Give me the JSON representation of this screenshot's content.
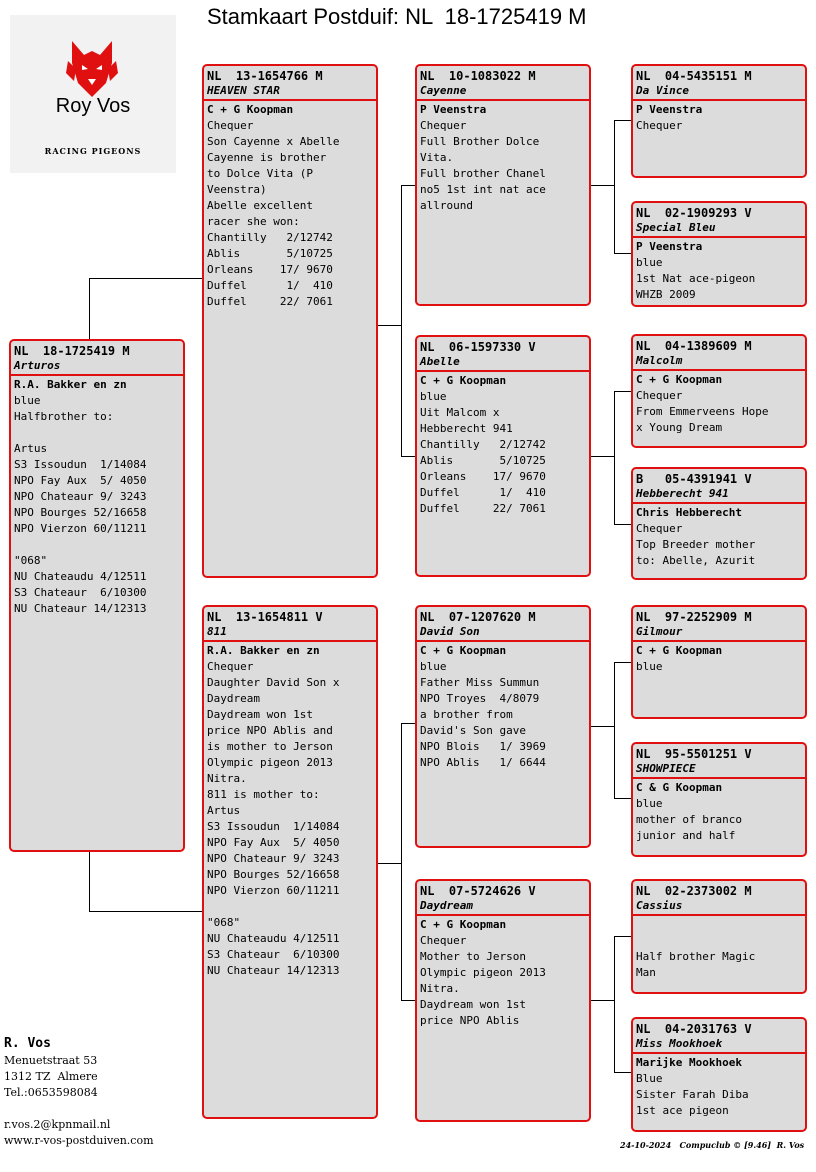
{
  "title": "Stamkaart Postduif: NL  18-1725419 M",
  "logo": {
    "name": "Roy Vos",
    "subtitle": "RACING PIGEONS",
    "icon": "wolf-head-icon"
  },
  "cards": {
    "subject": {
      "ring": "NL  18-1725419 M",
      "name": "Arturos",
      "owner": "R.A. Bakker en zn",
      "lines": [
        "blue",
        "Halfbrother to:",
        "",
        "Artus",
        "S3 Issoudun  1/14084",
        "NPO Fay Aux  5/ 4050",
        "NPO Chateaur 9/ 3243",
        "NPO Bourges 52/16658",
        "NPO Vierzon 60/11211",
        "",
        "\"068\"",
        "NU Chateaudu 4/12511",
        "S3 Chateaur  6/10300",
        "NU Chateaur 14/12313"
      ]
    },
    "father": {
      "ring": "NL  13-1654766 M",
      "name": "HEAVEN STAR",
      "owner": "C + G Koopman",
      "lines": [
        "Chequer",
        "Son Cayenne x Abelle",
        "Cayenne is brother",
        "to Dolce Vita (P",
        "Veenstra)",
        "Abelle excellent",
        "racer she won:",
        "Chantilly   2/12742",
        "Ablis       5/10725",
        "Orleans    17/ 9670",
        "Duffel      1/  410",
        "Duffel     22/ 7061"
      ]
    },
    "mother": {
      "ring": "NL  13-1654811 V",
      "name": "811",
      "owner": "R.A. Bakker en zn",
      "lines": [
        "Chequer",
        "Daughter David Son x",
        "Daydream",
        "Daydream won 1st",
        "price NPO Ablis and",
        "is mother to Jerson",
        "Olympic pigeon 2013",
        "Nitra.",
        "811 is mother to:",
        "Artus",
        "S3 Issoudun  1/14084",
        "NPO Fay Aux  5/ 4050",
        "NPO Chateaur 9/ 3243",
        "NPO Bourges 52/16658",
        "NPO Vierzon 60/11211",
        "",
        "\"068\"",
        "NU Chateaudu 4/12511",
        "S3 Chateaur  6/10300",
        "NU Chateaur 14/12313"
      ]
    },
    "ff": {
      "ring": "NL  10-1083022 M",
      "name": "Cayenne",
      "owner": "P Veenstra",
      "lines": [
        "Chequer",
        "Full Brother Dolce",
        "Vita.",
        "Full brother Chanel",
        "no5 1st int nat ace",
        "allround"
      ]
    },
    "fm": {
      "ring": "NL  06-1597330 V",
      "name": "Abelle",
      "owner": "C + G Koopman",
      "lines": [
        "blue",
        "Uit Malcom x",
        "Hebberecht 941",
        "Chantilly   2/12742",
        "Ablis       5/10725",
        "Orleans    17/ 9670",
        "Duffel      1/  410",
        "Duffel     22/ 7061"
      ]
    },
    "mf": {
      "ring": "NL  07-1207620 M",
      "name": "David Son",
      "owner": "C + G Koopman",
      "lines": [
        "blue",
        "Father Miss Summun",
        "NPO Troyes  4/8079",
        "a brother from",
        "David's Son gave",
        "NPO Blois   1/ 3969",
        "NPO Ablis   1/ 6644"
      ]
    },
    "mm": {
      "ring": "NL  07-5724626 V",
      "name": "Daydream",
      "owner": "C + G Koopman",
      "lines": [
        "Chequer",
        "Mother to Jerson",
        "Olympic pigeon 2013",
        "Nitra.",
        "Daydream won 1st",
        "price NPO Ablis"
      ]
    },
    "fff": {
      "ring": "NL  04-5435151 M",
      "name": "Da Vince",
      "owner": "P Veenstra",
      "lines": [
        "Chequer"
      ]
    },
    "ffm": {
      "ring": "NL  02-1909293 V",
      "name": "Special Bleu",
      "owner": "P Veenstra",
      "lines": [
        "blue",
        "1st Nat ace-pigeon",
        "WHZB 2009"
      ]
    },
    "fmf": {
      "ring": "NL  04-1389609 M",
      "name": "Malcolm",
      "owner": "C + G Koopman",
      "lines": [
        "Chequer",
        "From Emmerveens Hope",
        "x Young Dream"
      ]
    },
    "fmm": {
      "ring": "B   05-4391941 V",
      "name": "Hebberecht 941",
      "owner": "Chris Hebberecht",
      "lines": [
        "Chequer",
        "Top Breeder mother",
        "to: Abelle, Azurit"
      ]
    },
    "mff": {
      "ring": "NL  97-2252909 M",
      "name": "Gilmour",
      "owner": "C + G Koopman",
      "lines": [
        "blue"
      ]
    },
    "mfm": {
      "ring": "NL  95-5501251 V",
      "name": "SHOWPIECE",
      "owner": "C & G Koopman",
      "lines": [
        "blue",
        "mother of branco",
        "junior and half"
      ]
    },
    "mmf": {
      "ring": "NL  02-2373002 M",
      "name": "Cassius",
      "owner": "",
      "lines": [
        "",
        "Half brother Magic",
        "Man"
      ]
    },
    "mmm": {
      "ring": "NL  04-2031763 V",
      "name": "Miss Mookhoek",
      "owner": "Marijke Mookhoek",
      "lines": [
        "Blue",
        "Sister Farah Diba",
        "1st ace pigeon"
      ]
    }
  },
  "address": {
    "name": "R. Vos",
    "lines": [
      "Menuetstraat 53",
      "1312 TZ  Almere",
      "Tel.:0653598084",
      "",
      "r.vos.2@kpnmail.nl",
      "www.r-vos-postduiven.com"
    ]
  },
  "footer": "24-10-2024   Compuclub © [9.46]  R. Vos"
}
